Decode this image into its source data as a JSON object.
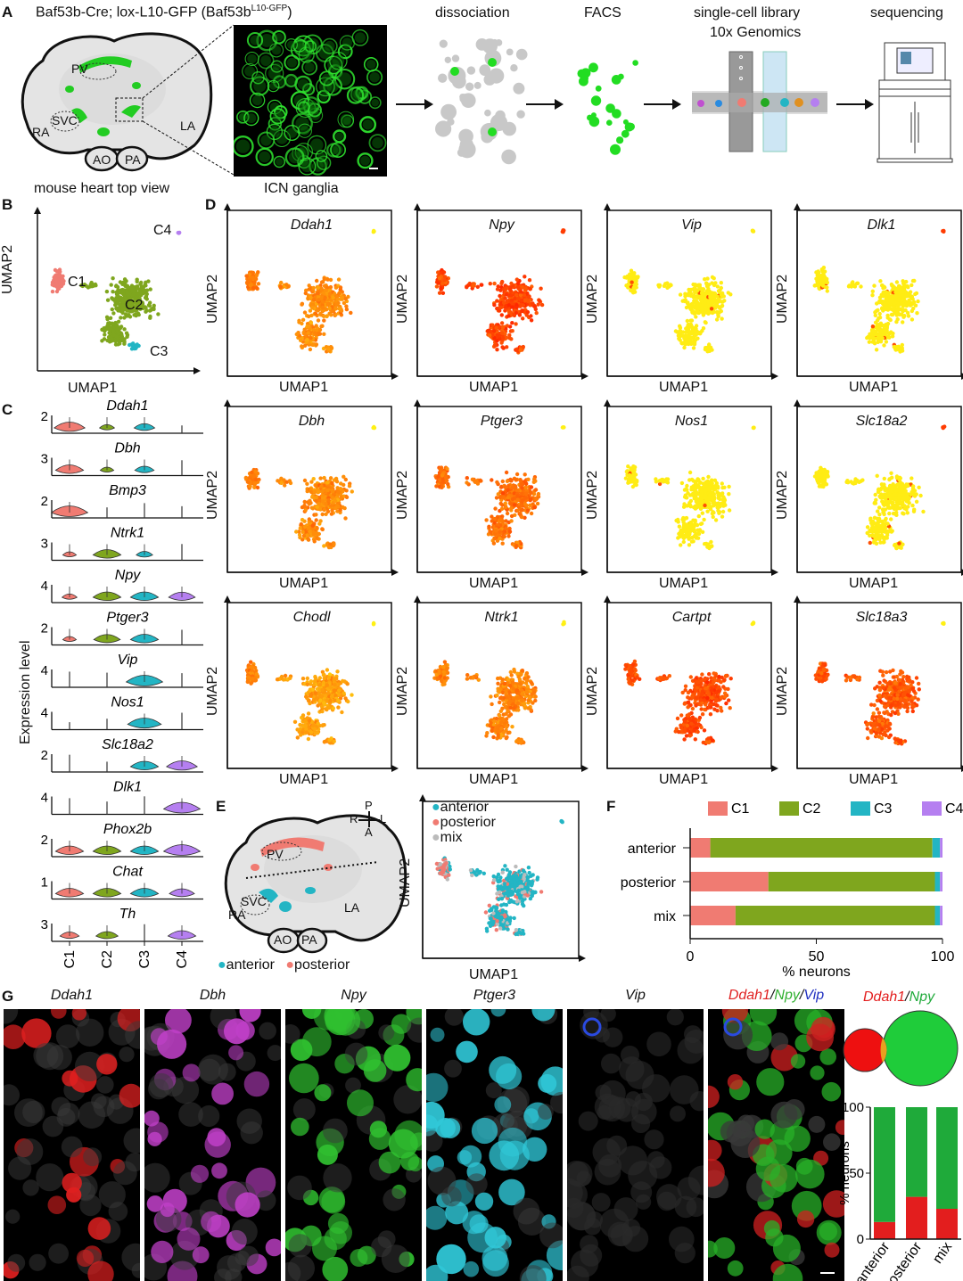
{
  "panel_labels": {
    "a": "A",
    "b": "B",
    "c": "C",
    "d": "D",
    "e": "E",
    "f": "F",
    "g": "G"
  },
  "panel_a": {
    "title_main": "Baf53b-Cre; lox-L10-GFP (Baf53b",
    "title_sup": "L10-GFP",
    "title_close": ")",
    "heart_labels": {
      "pv": "PV",
      "ra": "RA",
      "svc": "SVC",
      "la": "LA",
      "ao": "AO",
      "pa": "PA"
    },
    "heart_caption": "mouse heart top view",
    "ganglia_caption": "ICN ganglia",
    "steps": [
      "dissociation",
      "FACS",
      "single-cell library",
      "10x Genomics",
      "sequencing"
    ]
  },
  "axes": {
    "umap1": "UMAP1",
    "umap2": "UMAP2"
  },
  "panel_b": {
    "clusters": [
      "C1",
      "C2",
      "C3",
      "C4"
    ]
  },
  "panel_c": {
    "ylabel": "Expression level",
    "genes": [
      {
        "name": "Ddah1",
        "max": "2",
        "c1": 0.7,
        "c2": 0.15,
        "c3": 0.35,
        "c4": 0.05
      },
      {
        "name": "Dbh",
        "max": "3",
        "c1": 0.6,
        "c2": 0.1,
        "c3": 0.3,
        "c4": 0.05
      },
      {
        "name": "Bmp3",
        "max": "2",
        "c1": 0.9,
        "c2": 0.05,
        "c3": 0.05,
        "c4": 0.02
      },
      {
        "name": "Ntrk1",
        "max": "3",
        "c1": 0.1,
        "c2": 0.6,
        "c3": 0.2,
        "c4": 0.05
      },
      {
        "name": "Npy",
        "max": "4",
        "c1": 0.15,
        "c2": 0.6,
        "c3": 0.6,
        "c4": 0.55
      },
      {
        "name": "Ptger3",
        "max": "2",
        "c1": 0.1,
        "c2": 0.55,
        "c3": 0.6,
        "c4": 0.05
      },
      {
        "name": "Vip",
        "max": "4",
        "c1": 0.05,
        "c2": 0.05,
        "c3": 0.9,
        "c4": 0.02
      },
      {
        "name": "Nos1",
        "max": "4",
        "c1": 0.02,
        "c2": 0.05,
        "c3": 0.8,
        "c4": 0.02
      },
      {
        "name": "Slc18a2",
        "max": "2",
        "c1": 0.05,
        "c2": 0.05,
        "c3": 0.6,
        "c4": 0.7
      },
      {
        "name": "Dlk1",
        "max": "4",
        "c1": 0.02,
        "c2": 0.02,
        "c3": 0.02,
        "c4": 0.9
      },
      {
        "name": "Phox2b",
        "max": "2",
        "c1": 0.6,
        "c2": 0.6,
        "c3": 0.6,
        "c4": 0.9
      },
      {
        "name": "Chat",
        "max": "1",
        "c1": 0.6,
        "c2": 0.6,
        "c3": 0.6,
        "c4": 0.5
      },
      {
        "name": "Th",
        "max": "3",
        "c1": 0.3,
        "c2": 0.4,
        "c3": 0.05,
        "c4": 0.6
      }
    ],
    "xticks": [
      "C1",
      "C2",
      "C3",
      "C4"
    ]
  },
  "panel_d": {
    "genes": [
      "Ddah1",
      "Npy",
      "Vip",
      "Dlk1",
      "Dbh",
      "Ptger3",
      "Nos1",
      "Slc18a2",
      "Chodl",
      "Ntrk1",
      "Cartpt",
      "Slc18a3"
    ],
    "levels": [
      0.55,
      0.95,
      0.05,
      0.02,
      0.55,
      0.7,
      0.05,
      0.03,
      0.45,
      0.6,
      0.9,
      0.85
    ]
  },
  "panel_e": {
    "compass": {
      "p": "P",
      "a": "A",
      "r": "R",
      "l": "L"
    },
    "legend": [
      "anterior",
      "posterior",
      "mix"
    ],
    "heart_labels": {
      "pv": "PV",
      "ra": "RA",
      "svc": "SVC",
      "la": "LA",
      "ao": "AO",
      "pa": "PA"
    },
    "bottom_legend": [
      "anterior",
      "posterior"
    ]
  },
  "colors": {
    "c1": "#f07b72",
    "c2": "#7fa61e",
    "c3": "#23b5c4",
    "c4": "#b57ff0",
    "gfp": "#22cc22",
    "mix": "#bbbbbb",
    "red": "#e31e1e",
    "green": "#1faa3a"
  },
  "chart_data": [
    {
      "type": "bar",
      "orientation": "horizontal-stacked",
      "categories": [
        "anterior",
        "posterior",
        "mix"
      ],
      "series": [
        {
          "name": "C1",
          "values": [
            8,
            31,
            18
          ]
        },
        {
          "name": "C2",
          "values": [
            88,
            66,
            79
          ]
        },
        {
          "name": "C3",
          "values": [
            3,
            2,
            2
          ]
        },
        {
          "name": "C4",
          "values": [
            1,
            1,
            1
          ]
        }
      ],
      "xlabel": "% neurons",
      "xticks": [
        "0",
        "50",
        "100"
      ],
      "xlim": [
        0,
        100
      ]
    },
    {
      "type": "bar",
      "orientation": "vertical-stacked",
      "title_parts": [
        "Ddah1",
        "/",
        "Npy"
      ],
      "categories": [
        "anterior",
        "posterior",
        "mix"
      ],
      "series": [
        {
          "values": [
            13,
            32,
            23
          ]
        },
        {
          "values": [
            87,
            68,
            77
          ]
        }
      ],
      "ylabel": "% neurons",
      "yticks": [
        "0",
        "50",
        "100"
      ],
      "ylim": [
        0,
        100
      ]
    }
  ],
  "panel_g": {
    "channels": [
      {
        "name": "Ddah1",
        "color": "#e02020"
      },
      {
        "name": "Dbh",
        "color": "#c040c8"
      },
      {
        "name": "Npy",
        "color": "#30c030"
      },
      {
        "name": "Ptger3",
        "color": "#30c8d8"
      },
      {
        "name": "Vip",
        "color": "#1a2a9a"
      }
    ],
    "merge_parts": [
      "Ddah1",
      "/",
      "Npy",
      "/",
      "Vip"
    ]
  }
}
